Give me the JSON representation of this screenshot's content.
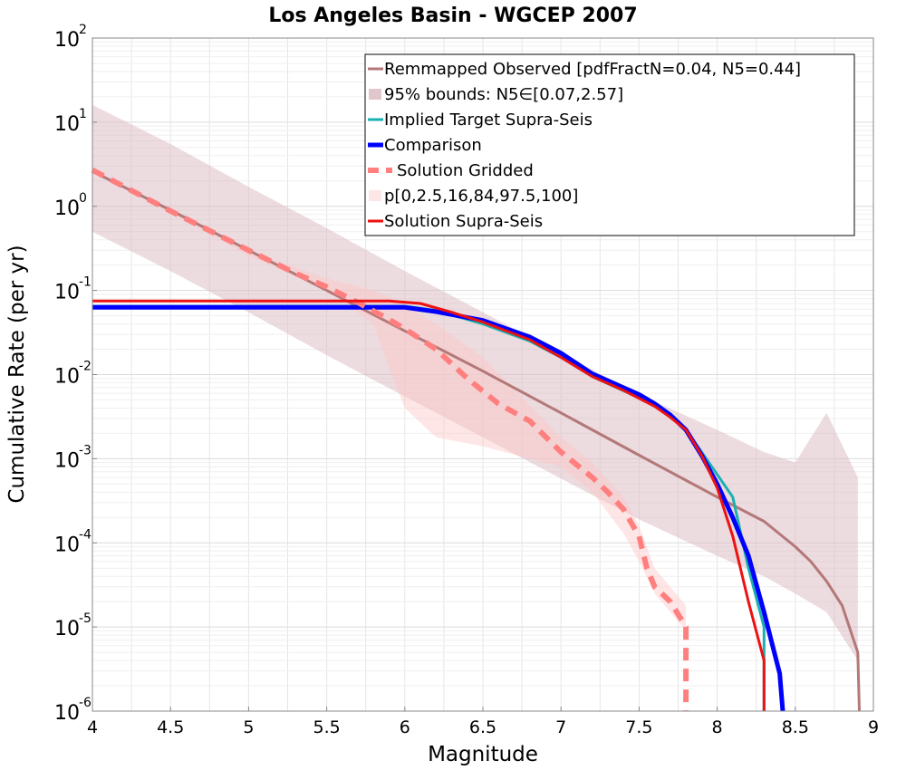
{
  "chart_data": {
    "type": "line",
    "title": "Los Angeles Basin - WGCEP 2007",
    "xlabel": "Magnitude",
    "ylabel": "Cumulative Rate (per yr)",
    "xlim": [
      4,
      9
    ],
    "ylim": [
      1e-06,
      100
    ],
    "yscale": "log",
    "grid": true,
    "legend_position": "top-right",
    "x_ticks": [
      "4",
      "4.5",
      "5",
      "5.5",
      "6",
      "6.5",
      "7",
      "7.5",
      "8",
      "8.5",
      "9"
    ],
    "y_ticks": [
      {
        "value": 1e-06,
        "base": "10",
        "exp": "-6"
      },
      {
        "value": 1e-05,
        "base": "10",
        "exp": "-5"
      },
      {
        "value": 0.0001,
        "base": "10",
        "exp": "-4"
      },
      {
        "value": 0.001,
        "base": "10",
        "exp": "-3"
      },
      {
        "value": 0.01,
        "base": "10",
        "exp": "-2"
      },
      {
        "value": 0.1,
        "base": "10",
        "exp": "-1"
      },
      {
        "value": 1,
        "base": "10",
        "exp": "0"
      },
      {
        "value": 10,
        "base": "10",
        "exp": "1"
      },
      {
        "value": 100,
        "base": "10",
        "exp": "2"
      }
    ],
    "bands": [
      {
        "name": "95% bounds: N5∈[0.07,2.57]",
        "color": "#d9b8bf",
        "opacity": 0.5,
        "x": [
          4.0,
          4.5,
          5.0,
          5.5,
          6.0,
          6.5,
          7.0,
          7.5,
          8.0,
          8.3,
          8.5,
          8.7,
          8.9
        ],
        "upper": [
          16,
          5.5,
          1.7,
          0.55,
          0.17,
          0.055,
          0.018,
          0.0058,
          0.0022,
          0.0012,
          0.0009,
          0.0035,
          0.0006
        ],
        "lower": [
          0.5,
          0.17,
          0.055,
          0.017,
          0.0055,
          0.0018,
          0.00058,
          0.00019,
          7e-05,
          4e-05,
          2.5e-05,
          1.5e-05,
          4e-06
        ]
      },
      {
        "name": "p[0,2.5,16,84,97.5,100]",
        "color": "#ffc8c8",
        "opacity": 0.45,
        "x": [
          4.0,
          5.0,
          5.5,
          5.8,
          5.9,
          6.0,
          6.2,
          6.5,
          7.0,
          7.2,
          7.4,
          7.5,
          7.6,
          7.8
        ],
        "upper": [
          2.8,
          0.3,
          0.14,
          0.1,
          0.085,
          0.065,
          0.04,
          0.016,
          0.0018,
          0.0009,
          0.00035,
          0.00016,
          5e-05,
          1.8e-05
        ],
        "lower": [
          2.6,
          0.26,
          0.1,
          0.04,
          0.012,
          0.004,
          0.0018,
          0.0014,
          0.0008,
          0.0004,
          0.00013,
          6e-05,
          2.5e-05,
          9e-06
        ]
      }
    ],
    "series": [
      {
        "name": "Remmapped Observed [pdfFractN=0.04, N5=0.44]",
        "color": "#b47878",
        "width": 3,
        "dash": "",
        "x": [
          4.0,
          4.5,
          5.0,
          5.5,
          6.0,
          6.5,
          7.0,
          7.5,
          8.0,
          8.3,
          8.5,
          8.6,
          8.7,
          8.8,
          8.9,
          8.91
        ],
        "y": [
          2.6,
          0.9,
          0.3,
          0.1,
          0.033,
          0.011,
          0.0035,
          0.0011,
          0.00035,
          0.00018,
          9e-05,
          6e-05,
          3.5e-05,
          1.8e-05,
          5e-06,
          1e-06
        ]
      },
      {
        "name": "Implied Target Supra-Seis",
        "color": "#1ab0b0",
        "width": 3,
        "dash": "",
        "x": [
          4.0,
          6.0,
          6.2,
          6.5,
          6.8,
          7.0,
          7.2,
          7.5,
          7.6,
          7.7,
          7.8,
          7.9,
          8.0,
          8.1,
          8.2,
          8.3,
          8.3
        ],
        "y": [
          0.065,
          0.065,
          0.058,
          0.04,
          0.025,
          0.016,
          0.0095,
          0.0053,
          0.0042,
          0.0034,
          0.0022,
          0.0012,
          0.00065,
          0.00035,
          5e-05,
          1e-05,
          1e-06
        ]
      },
      {
        "name": "Comparison",
        "color": "#0000ff",
        "width": 5,
        "dash": "",
        "x": [
          4.0,
          6.0,
          6.2,
          6.5,
          6.8,
          7.0,
          7.2,
          7.5,
          7.6,
          7.7,
          7.8,
          7.9,
          8.0,
          8.1,
          8.2,
          8.3,
          8.4,
          8.42
        ],
        "y": [
          0.063,
          0.063,
          0.056,
          0.044,
          0.028,
          0.018,
          0.0102,
          0.0058,
          0.0045,
          0.0033,
          0.0022,
          0.0011,
          0.0005,
          0.0002,
          7e-05,
          1.5e-05,
          2.8e-06,
          1e-06
        ]
      },
      {
        "name": "Solution Gridded",
        "color": "#ff7f7f",
        "width": 6,
        "dash": "14,9",
        "x": [
          4.0,
          4.5,
          5.0,
          5.3,
          5.5,
          5.7,
          5.9,
          6.0,
          6.2,
          6.4,
          6.6,
          6.8,
          7.0,
          7.2,
          7.3,
          7.4,
          7.5,
          7.55,
          7.6,
          7.7,
          7.8,
          7.8
        ],
        "y": [
          2.7,
          0.88,
          0.3,
          0.16,
          0.11,
          0.072,
          0.045,
          0.035,
          0.02,
          0.009,
          0.0045,
          0.0028,
          0.0012,
          0.0006,
          0.0004,
          0.00025,
          0.00012,
          5e-05,
          3e-05,
          2e-05,
          1e-05,
          1e-06
        ]
      },
      {
        "name": "Solution Supra-Seis",
        "color": "#ee1111",
        "width": 3,
        "dash": "",
        "x": [
          4.0,
          5.9,
          6.1,
          6.3,
          6.5,
          6.8,
          7.0,
          7.2,
          7.4,
          7.6,
          7.7,
          7.8,
          7.9,
          8.0,
          8.1,
          8.2,
          8.3,
          8.3
        ],
        "y": [
          0.075,
          0.075,
          0.07,
          0.055,
          0.042,
          0.026,
          0.016,
          0.0095,
          0.0065,
          0.0042,
          0.0031,
          0.0022,
          0.0011,
          0.00045,
          0.00012,
          2e-05,
          4e-06,
          1e-06
        ]
      }
    ],
    "legend": [
      {
        "label": "Remmapped Observed [pdfFractN=0.04, N5=0.44]",
        "kind": "line",
        "color": "#b47878",
        "width": 3,
        "dash": ""
      },
      {
        "label": "95% bounds: N5∈[0.07,2.57]",
        "kind": "band",
        "color": "#d9b8bf",
        "width": 6,
        "dash": ""
      },
      {
        "label": "Implied Target Supra-Seis",
        "kind": "line",
        "color": "#1ab0b0",
        "width": 3,
        "dash": ""
      },
      {
        "label": "Comparison",
        "kind": "line",
        "color": "#0000ff",
        "width": 5,
        "dash": ""
      },
      {
        "label": "Solution Gridded",
        "kind": "line",
        "color": "#ff7f7f",
        "width": 6,
        "dash": "12,8"
      },
      {
        "label": "p[0,2.5,16,84,97.5,100]",
        "kind": "band",
        "color": "#ffe0e0",
        "width": 6,
        "dash": ""
      },
      {
        "label": "Solution Supra-Seis",
        "kind": "line",
        "color": "#ee1111",
        "width": 3,
        "dash": ""
      }
    ]
  }
}
